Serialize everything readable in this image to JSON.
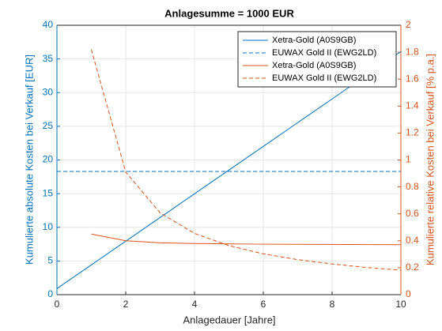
{
  "chart_data": {
    "type": "line",
    "title": "Anlagesumme = 1000 EUR",
    "x_label": "Anlagedauer [Jahre]",
    "y_label": "Kumulierte absolute Kosten bei Verkauf [EUR]",
    "y2_label": "Kumulierte relative Kosten bei Verkauf [% p.a.]",
    "xlim": [
      0,
      10
    ],
    "xticks": [
      0,
      2,
      4,
      6,
      8,
      10
    ],
    "ylim": [
      0,
      40
    ],
    "yticks": [
      0,
      5,
      10,
      15,
      20,
      25,
      30,
      35,
      40
    ],
    "y2lim": [
      0,
      2
    ],
    "y2ticks": [
      0,
      0.2,
      0.4,
      0.6,
      0.8,
      1,
      1.2,
      1.4,
      1.6,
      1.8,
      2
    ],
    "grid": true,
    "legend": "upper right",
    "y_color": "#0072bd",
    "y2_color": "#d95319",
    "series": [
      {
        "name": "Xetra-Gold (A0S9GB)",
        "color": "#0072bd",
        "dash": false,
        "axis": "y",
        "x": [
          0,
          1,
          2,
          3,
          4,
          5,
          6,
          7,
          8,
          9,
          10
        ],
        "values": [
          0.9,
          4.42,
          7.94,
          11.46,
          14.98,
          18.5,
          22.02,
          25.54,
          29.06,
          32.58,
          36.1
        ]
      },
      {
        "name": "EUWAX Gold II (EWG2LD)",
        "color": "#0072bd",
        "dash": true,
        "axis": "y",
        "x": [
          0,
          1,
          2,
          3,
          4,
          5,
          6,
          7,
          8,
          9,
          10
        ],
        "values": [
          18.3,
          18.3,
          18.3,
          18.3,
          18.3,
          18.3,
          18.3,
          18.3,
          18.3,
          18.3,
          18.3
        ]
      },
      {
        "name": "Xetra-Gold (A0S9GB)",
        "color": "#d95319",
        "dash": false,
        "axis": "y2",
        "x": [
          1,
          2,
          3,
          4,
          5,
          6,
          7,
          8,
          9,
          10
        ],
        "values": [
          0.45,
          0.4,
          0.385,
          0.38,
          0.377,
          0.375,
          0.374,
          0.373,
          0.372,
          0.371
        ]
      },
      {
        "name": "EUWAX Gold II (EWG2LD)",
        "color": "#d95319",
        "dash": true,
        "axis": "y2",
        "x": [
          1,
          2,
          3,
          4,
          5,
          6,
          7,
          8,
          9,
          10
        ],
        "values": [
          1.82,
          0.91,
          0.607,
          0.455,
          0.364,
          0.303,
          0.26,
          0.228,
          0.202,
          0.182
        ]
      }
    ]
  }
}
